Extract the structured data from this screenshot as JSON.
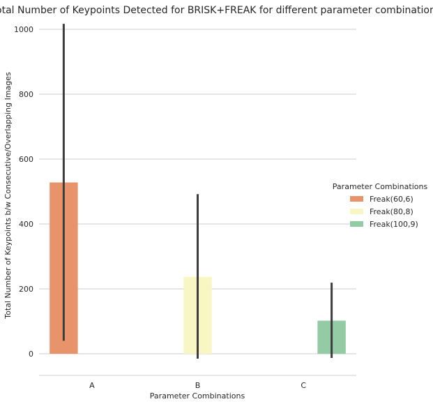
{
  "chart_data": {
    "type": "bar",
    "title": "Total Number of Keypoints Detected for BRISK+FREAK for different parameter combinations",
    "xlabel": "Parameter Combinations",
    "ylabel": "Total Number of Keypoints b/w Consecutive/Overlapping Images",
    "categories": [
      "A",
      "B",
      "C"
    ],
    "ylim": [
      -65,
      1030
    ],
    "yticks": [
      0,
      200,
      400,
      600,
      800,
      1000
    ],
    "grid": true,
    "legend": {
      "title": "Parameter Combinations",
      "placement": "right"
    },
    "series": [
      {
        "name": "Freak(60,6)",
        "color": "#e8936a",
        "category": "A",
        "value": 528,
        "ci": [
          40,
          1017
        ]
      },
      {
        "name": "Freak(80,8)",
        "color": "#f8f7c4",
        "category": "B",
        "value": 237,
        "ci": [
          -15,
          492
        ]
      },
      {
        "name": "Freak(100,9)",
        "color": "#93cba4",
        "category": "C",
        "value": 102,
        "ci": [
          -13,
          219
        ]
      }
    ]
  }
}
